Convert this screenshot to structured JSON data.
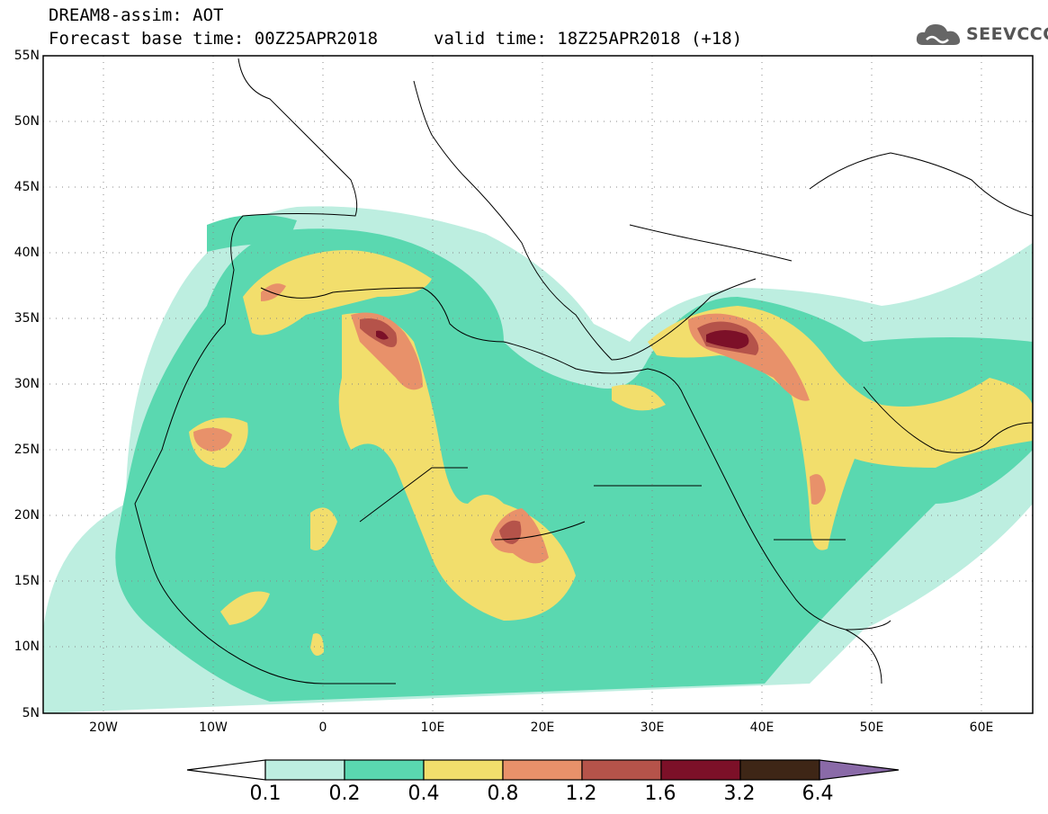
{
  "header": {
    "title": "DREAM8-assim: AOT",
    "forecast_base": "Forecast base time: 00Z25APR2018",
    "valid_time": "valid time: 18Z25APR2018 (+18)"
  },
  "logo": {
    "text": "SEEVCCC",
    "icon": "cloud-icon"
  },
  "map": {
    "projection": "cylindrical",
    "lon_range": [
      -25,
      65
    ],
    "lat_range": [
      5,
      55
    ],
    "lat_ticks": [
      "55N",
      "50N",
      "45N",
      "40N",
      "35N",
      "30N",
      "25N",
      "20N",
      "15N",
      "10N",
      "5N"
    ],
    "lon_ticks": [
      "20W",
      "10W",
      "0",
      "10E",
      "20E",
      "30E",
      "40E",
      "50E",
      "60E"
    ],
    "grid": "dotted",
    "colors": {
      "0.1-0.2": "#bdeee0",
      "0.2-0.4": "#5ad8b0",
      "0.4-0.8": "#f2de6c",
      "0.8-1.2": "#e8916a",
      "1.2-1.6": "#b5534a",
      "1.6-3.2": "#7c1028",
      "3.2-6.4": "#3e2616",
      "above": "#8a6aa8"
    }
  },
  "colorbar": {
    "labels": [
      "0.1",
      "0.2",
      "0.4",
      "0.8",
      "1.2",
      "1.6",
      "3.2",
      "6.4"
    ],
    "colors": [
      "#ffffff",
      "#bdeee0",
      "#5ad8b0",
      "#f2de6c",
      "#e8916a",
      "#b5534a",
      "#7c1028",
      "#3e2616",
      "#8a6aa8"
    ]
  }
}
